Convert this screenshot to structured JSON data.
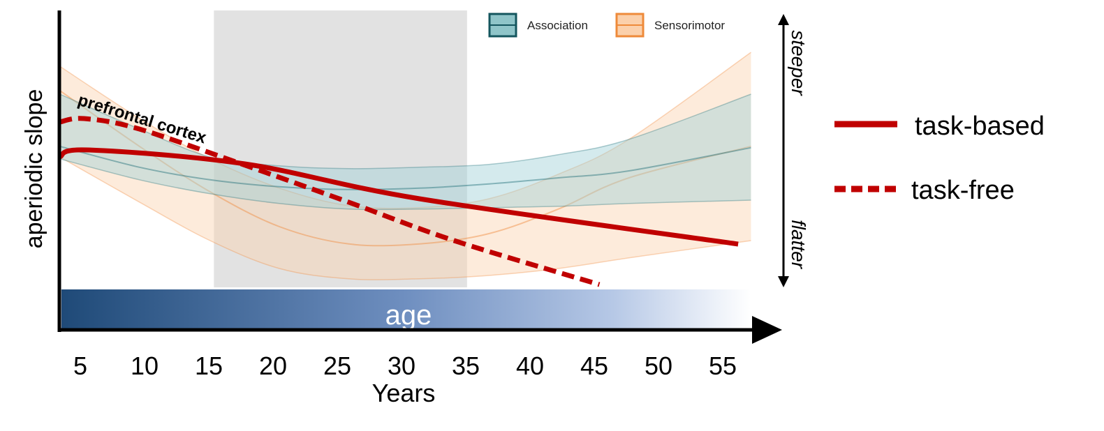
{
  "chart_data": {
    "type": "line",
    "xlabel": "Years",
    "ylabel": "aperiodic slope",
    "xlim": [
      3.4,
      57.2
    ],
    "ylim": [
      0,
      1
    ],
    "x_ticks": [
      "5",
      "10",
      "15",
      "20",
      "25",
      "30",
      "35",
      "40",
      "45",
      "50",
      "55"
    ],
    "x_tick_values": [
      5,
      10,
      15,
      20,
      25,
      30,
      35,
      40,
      45,
      50,
      55
    ],
    "grid": false,
    "highlight_band": {
      "x_range": [
        15.4,
        35.1
      ],
      "color": "#e2e2e2"
    },
    "age_bar_label": "age",
    "right_arrow": {
      "top_label": "steeper",
      "bottom_label": "flatter"
    },
    "annotation": "prefrontal cortex",
    "bands": [
      {
        "name": "Association",
        "color": "#1f6f78",
        "fill": "#9fd0d6",
        "x": [
          3.4,
          9.6,
          15.1,
          20.5,
          25.9,
          31.4,
          36.8,
          42.2,
          47.7,
          57.2
        ],
        "upper": [
          0.7,
          0.575,
          0.475,
          0.443,
          0.433,
          0.438,
          0.448,
          0.483,
          0.538,
          0.7
        ],
        "mean": [
          0.513,
          0.438,
          0.393,
          0.368,
          0.358,
          0.363,
          0.378,
          0.4,
          0.425,
          0.508
        ],
        "lower": [
          0.468,
          0.393,
          0.343,
          0.308,
          0.288,
          0.288,
          0.293,
          0.298,
          0.308,
          0.32
        ]
      },
      {
        "name": "Sensorimotor",
        "color": "#f08a3c",
        "fill": "#fbd3b0",
        "x": [
          3.4,
          9.6,
          15.1,
          20.5,
          25.9,
          31.4,
          36.8,
          42.2,
          47.7,
          57.2
        ],
        "upper": [
          0.8,
          0.613,
          0.468,
          0.363,
          0.3,
          0.293,
          0.325,
          0.413,
          0.538,
          0.85
        ],
        "mean": [
          0.713,
          0.513,
          0.35,
          0.225,
          0.163,
          0.163,
          0.2,
          0.288,
          0.4,
          0.513
        ],
        "lower": [
          0.475,
          0.313,
          0.175,
          0.075,
          0.038,
          0.038,
          0.05,
          0.075,
          0.113,
          0.175
        ]
      }
    ],
    "series": [
      {
        "name": "task-based",
        "style": "solid",
        "color": "#c00000",
        "x": [
          3.4,
          5.6,
          17.8,
          31.4,
          56.2
        ],
        "y": [
          0.475,
          0.5,
          0.45,
          0.325,
          0.1625
        ]
      },
      {
        "name": "task-free",
        "style": "dashed",
        "color": "#c00000",
        "x": [
          3.4,
          5.3,
          9.6,
          18.3,
          25.9,
          34.1,
          45.4
        ],
        "y": [
          0.6,
          0.6125,
          0.575,
          0.4375,
          0.3125,
          0.175,
          0.0175
        ]
      }
    ],
    "legend_top": [
      "Association",
      "Sensorimotor"
    ],
    "legend_right": [
      "task-based",
      "task-free"
    ]
  }
}
